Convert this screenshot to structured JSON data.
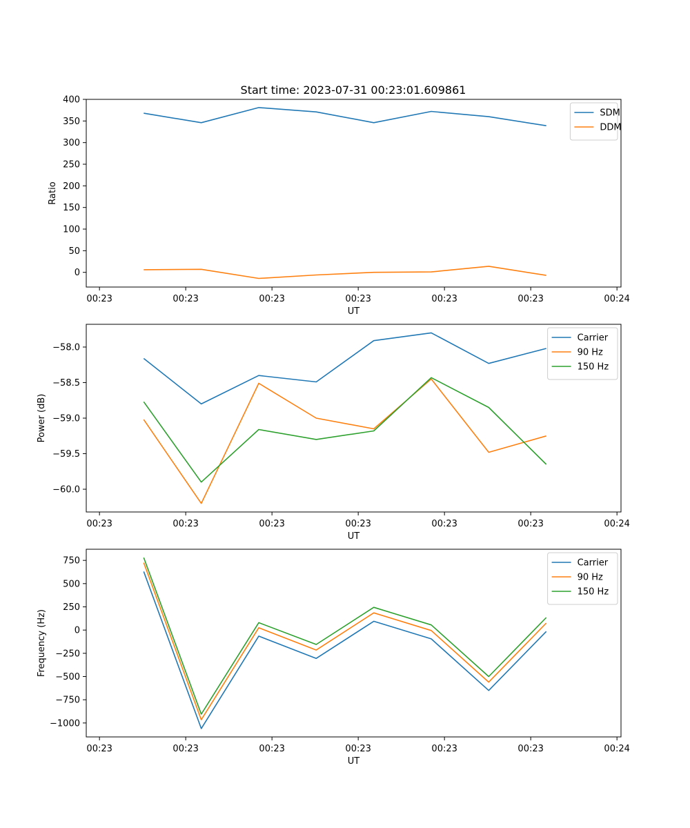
{
  "figure": {
    "title": "Start time: 2023-07-31 00:23:01.609861"
  },
  "chart_data": [
    {
      "type": "line",
      "xlabel": "UT",
      "ylabel": "Ratio",
      "xlim": [
        0,
        9.3
      ],
      "ylim": [
        -34,
        400
      ],
      "x": [
        1,
        2,
        3,
        4,
        5,
        6,
        7,
        8
      ],
      "xticks": [
        0.23,
        1.73,
        3.23,
        4.73,
        6.23,
        7.73,
        9.23
      ],
      "xtick_labels": [
        "00:23",
        "00:23",
        "00:23",
        "00:23",
        "00:23",
        "00:23",
        "00:24"
      ],
      "yticks": [
        0,
        50,
        100,
        150,
        200,
        250,
        300,
        350,
        400
      ],
      "ytick_labels": [
        "0",
        "50",
        "100",
        "150",
        "200",
        "250",
        "300",
        "350",
        "400"
      ],
      "legend_position": "top-right",
      "series": [
        {
          "name": "SDM",
          "color": "#1f77b4",
          "values": [
            368,
            346,
            381,
            371,
            346,
            372,
            360,
            339
          ]
        },
        {
          "name": "DDM",
          "color": "#ff7f0e",
          "values": [
            6,
            7,
            -14,
            -6,
            0,
            1,
            14,
            -7
          ]
        }
      ]
    },
    {
      "type": "line",
      "xlabel": "UT",
      "ylabel": "Power (dB)",
      "xlim": [
        0,
        9.3
      ],
      "ylim": [
        -60.32,
        -57.68
      ],
      "x": [
        1,
        2,
        3,
        4,
        5,
        6,
        7,
        8
      ],
      "xticks": [
        0.23,
        1.73,
        3.23,
        4.73,
        6.23,
        7.73,
        9.23
      ],
      "xtick_labels": [
        "00:23",
        "00:23",
        "00:23",
        "00:23",
        "00:23",
        "00:23",
        "00:24"
      ],
      "yticks": [
        -58.0,
        -58.5,
        -59.0,
        -59.5,
        -60.0
      ],
      "ytick_labels": [
        "−58.0",
        "−58.5",
        "−59.0",
        "−59.5",
        "−60.0"
      ],
      "legend_position": "top-right",
      "series": [
        {
          "name": "Carrier",
          "color": "#1f77b4",
          "values": [
            -58.16,
            -58.8,
            -58.4,
            -58.49,
            -57.91,
            -57.8,
            -58.23,
            -58.02
          ]
        },
        {
          "name": "90 Hz",
          "color": "#ff7f0e",
          "values": [
            -59.02,
            -60.2,
            -58.51,
            -59.0,
            -59.15,
            -58.45,
            -59.48,
            -59.25
          ]
        },
        {
          "name": "150 Hz",
          "color": "#2ca02c",
          "values": [
            -58.77,
            -59.9,
            -59.16,
            -59.3,
            -59.18,
            -58.43,
            -58.85,
            -59.65
          ]
        }
      ]
    },
    {
      "type": "line",
      "xlabel": "UT",
      "ylabel": "Frequency (Hz)",
      "xlim": [
        0,
        9.3
      ],
      "ylim": [
        -1150,
        870
      ],
      "x": [
        1,
        2,
        3,
        4,
        5,
        6,
        7,
        8
      ],
      "xticks": [
        0.23,
        1.73,
        3.23,
        4.73,
        6.23,
        7.73,
        9.23
      ],
      "xtick_labels": [
        "00:23",
        "00:23",
        "00:23",
        "00:23",
        "00:23",
        "00:23",
        "00:24"
      ],
      "yticks": [
        750,
        500,
        250,
        0,
        -250,
        -500,
        -750,
        -1000
      ],
      "ytick_labels": [
        "750",
        "500",
        "250",
        "0",
        "−250",
        "−500",
        "−750",
        "−1000"
      ],
      "legend_position": "top-right",
      "series": [
        {
          "name": "Carrier",
          "color": "#1f77b4",
          "values": [
            630,
            -1060,
            -65,
            -305,
            95,
            -95,
            -650,
            -15
          ]
        },
        {
          "name": "90 Hz",
          "color": "#ff7f0e",
          "values": [
            725,
            -965,
            25,
            -215,
            185,
            -5,
            -560,
            75
          ]
        },
        {
          "name": "150 Hz",
          "color": "#2ca02c",
          "values": [
            780,
            -905,
            80,
            -155,
            245,
            55,
            -500,
            135
          ]
        }
      ]
    }
  ]
}
